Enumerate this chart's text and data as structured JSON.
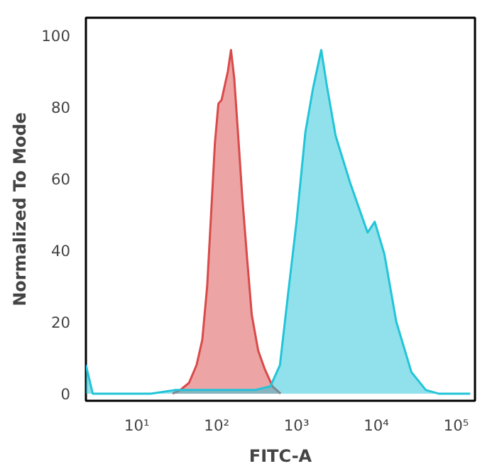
{
  "chart_data": {
    "type": "area",
    "xlabel": "FITC-A",
    "ylabel": "Normalized To Mode",
    "log": "x",
    "xlim": [
      2.3,
      172000
    ],
    "ylim": [
      -2,
      105
    ],
    "xticks": [
      {
        "value": 10,
        "label": "10¹"
      },
      {
        "value": 100,
        "label": "10²"
      },
      {
        "value": 1000,
        "label": "10³"
      },
      {
        "value": 10000,
        "label": "10⁴"
      },
      {
        "value": 100000,
        "label": "10⁵"
      }
    ],
    "yticks": [
      0,
      20,
      40,
      60,
      80,
      100
    ],
    "grid": false,
    "series": [
      {
        "color": "#d94a4a",
        "x": [
          28,
          35,
          45,
          56,
          66,
          76,
          85,
          95,
          105,
          115,
          126,
          138,
          151,
          166,
          186,
          209,
          240,
          275,
          331,
          398,
          501,
          631
        ],
        "values": [
          0,
          1,
          3,
          8,
          15,
          30,
          50,
          70,
          81,
          82,
          86,
          90,
          96,
          88,
          72,
          55,
          38,
          22,
          12,
          7,
          2,
          0
        ]
      },
      {
        "color": "#22c4d8",
        "x": [
          2.3,
          2.8,
          15,
          30,
          100,
          300,
          470,
          620,
          776,
          1000,
          1290,
          1600,
          2040,
          2400,
          3090,
          4680,
          7760,
          9550,
          12600,
          17800,
          27500,
          41700,
          60000,
          150000
        ],
        "values": [
          8,
          0,
          0,
          1,
          1,
          1,
          2,
          8,
          27,
          48,
          73,
          85,
          96,
          86,
          72,
          59,
          45,
          48,
          39,
          20,
          6,
          1,
          0,
          0
        ]
      }
    ]
  }
}
